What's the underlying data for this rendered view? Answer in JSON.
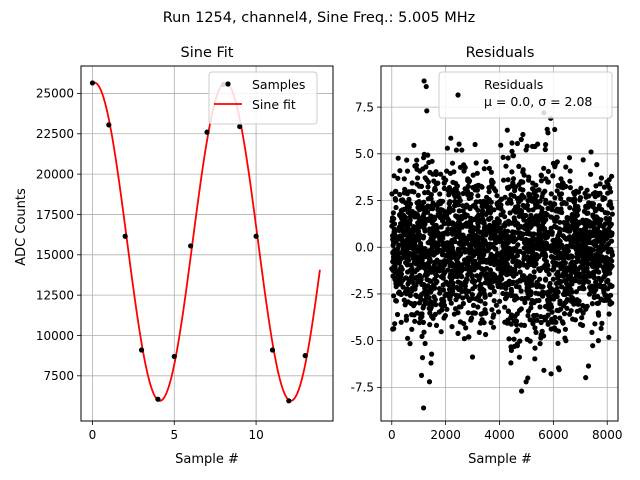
{
  "figure": {
    "suptitle": "Run 1254, channel4, Sine Freq.: 5.005 MHz"
  },
  "chart_data": [
    {
      "type": "line",
      "title": "Sine Fit",
      "xlabel": "Sample #",
      "ylabel": "ADC Counts",
      "xlim": [
        -0.7,
        14.7
      ],
      "ylim": [
        4700,
        26700
      ],
      "xticks": [
        0,
        5,
        10
      ],
      "yticks": [
        7500,
        10000,
        12500,
        15000,
        17500,
        20000,
        22500,
        25000
      ],
      "grid": true,
      "legend_position": "top-right",
      "series": [
        {
          "name": "Samples",
          "kind": "scatter",
          "color": "#000000",
          "x": [
            0,
            1,
            2,
            3,
            4,
            5,
            6,
            7,
            8,
            9,
            10,
            11,
            12,
            13
          ],
          "y": [
            25650,
            23050,
            16150,
            9100,
            6050,
            8700,
            15550,
            22600,
            25550,
            22950,
            16150,
            9100,
            5950,
            8750
          ]
        },
        {
          "name": "Sine fit",
          "kind": "line",
          "color": "#ff0000",
          "model": {
            "amplitude": 9860,
            "offset": 15810,
            "period": 8.003,
            "phase_sample": 0.12,
            "x_range": [
              0,
              13.9
            ]
          }
        }
      ]
    },
    {
      "type": "scatter",
      "title": "Residuals",
      "xlabel": "Sample #",
      "ylabel": "",
      "xlim": [
        -400,
        8400
      ],
      "ylim": [
        -9.3,
        9.7
      ],
      "xticks": [
        0,
        2000,
        4000,
        6000,
        8000
      ],
      "yticks": [
        -7.5,
        -5.0,
        -2.5,
        0.0,
        2.5,
        5.0,
        7.5
      ],
      "grid": true,
      "legend_position": "top-right",
      "series": [
        {
          "name": "Residuals",
          "legend_line2": "μ = 0.0, σ = 2.08",
          "color": "#000000",
          "n_points": 8192,
          "mean": 0.0,
          "sigma": 2.08,
          "extremes": [
            {
              "x": 1200,
              "y": 8.9
            },
            {
              "x": 1280,
              "y": 8.6
            },
            {
              "x": 1180,
              "y": -8.6
            },
            {
              "x": 4820,
              "y": -7.7
            },
            {
              "x": 1300,
              "y": 7.3
            },
            {
              "x": 5900,
              "y": 6.9
            },
            {
              "x": 1400,
              "y": -7.2
            },
            {
              "x": 2600,
              "y": 5.2
            },
            {
              "x": 2400,
              "y": 5.2
            },
            {
              "x": 7400,
              "y": 5.1
            },
            {
              "x": 5050,
              "y": -7.0
            },
            {
              "x": 6050,
              "y": 6.3
            }
          ]
        }
      ]
    }
  ]
}
